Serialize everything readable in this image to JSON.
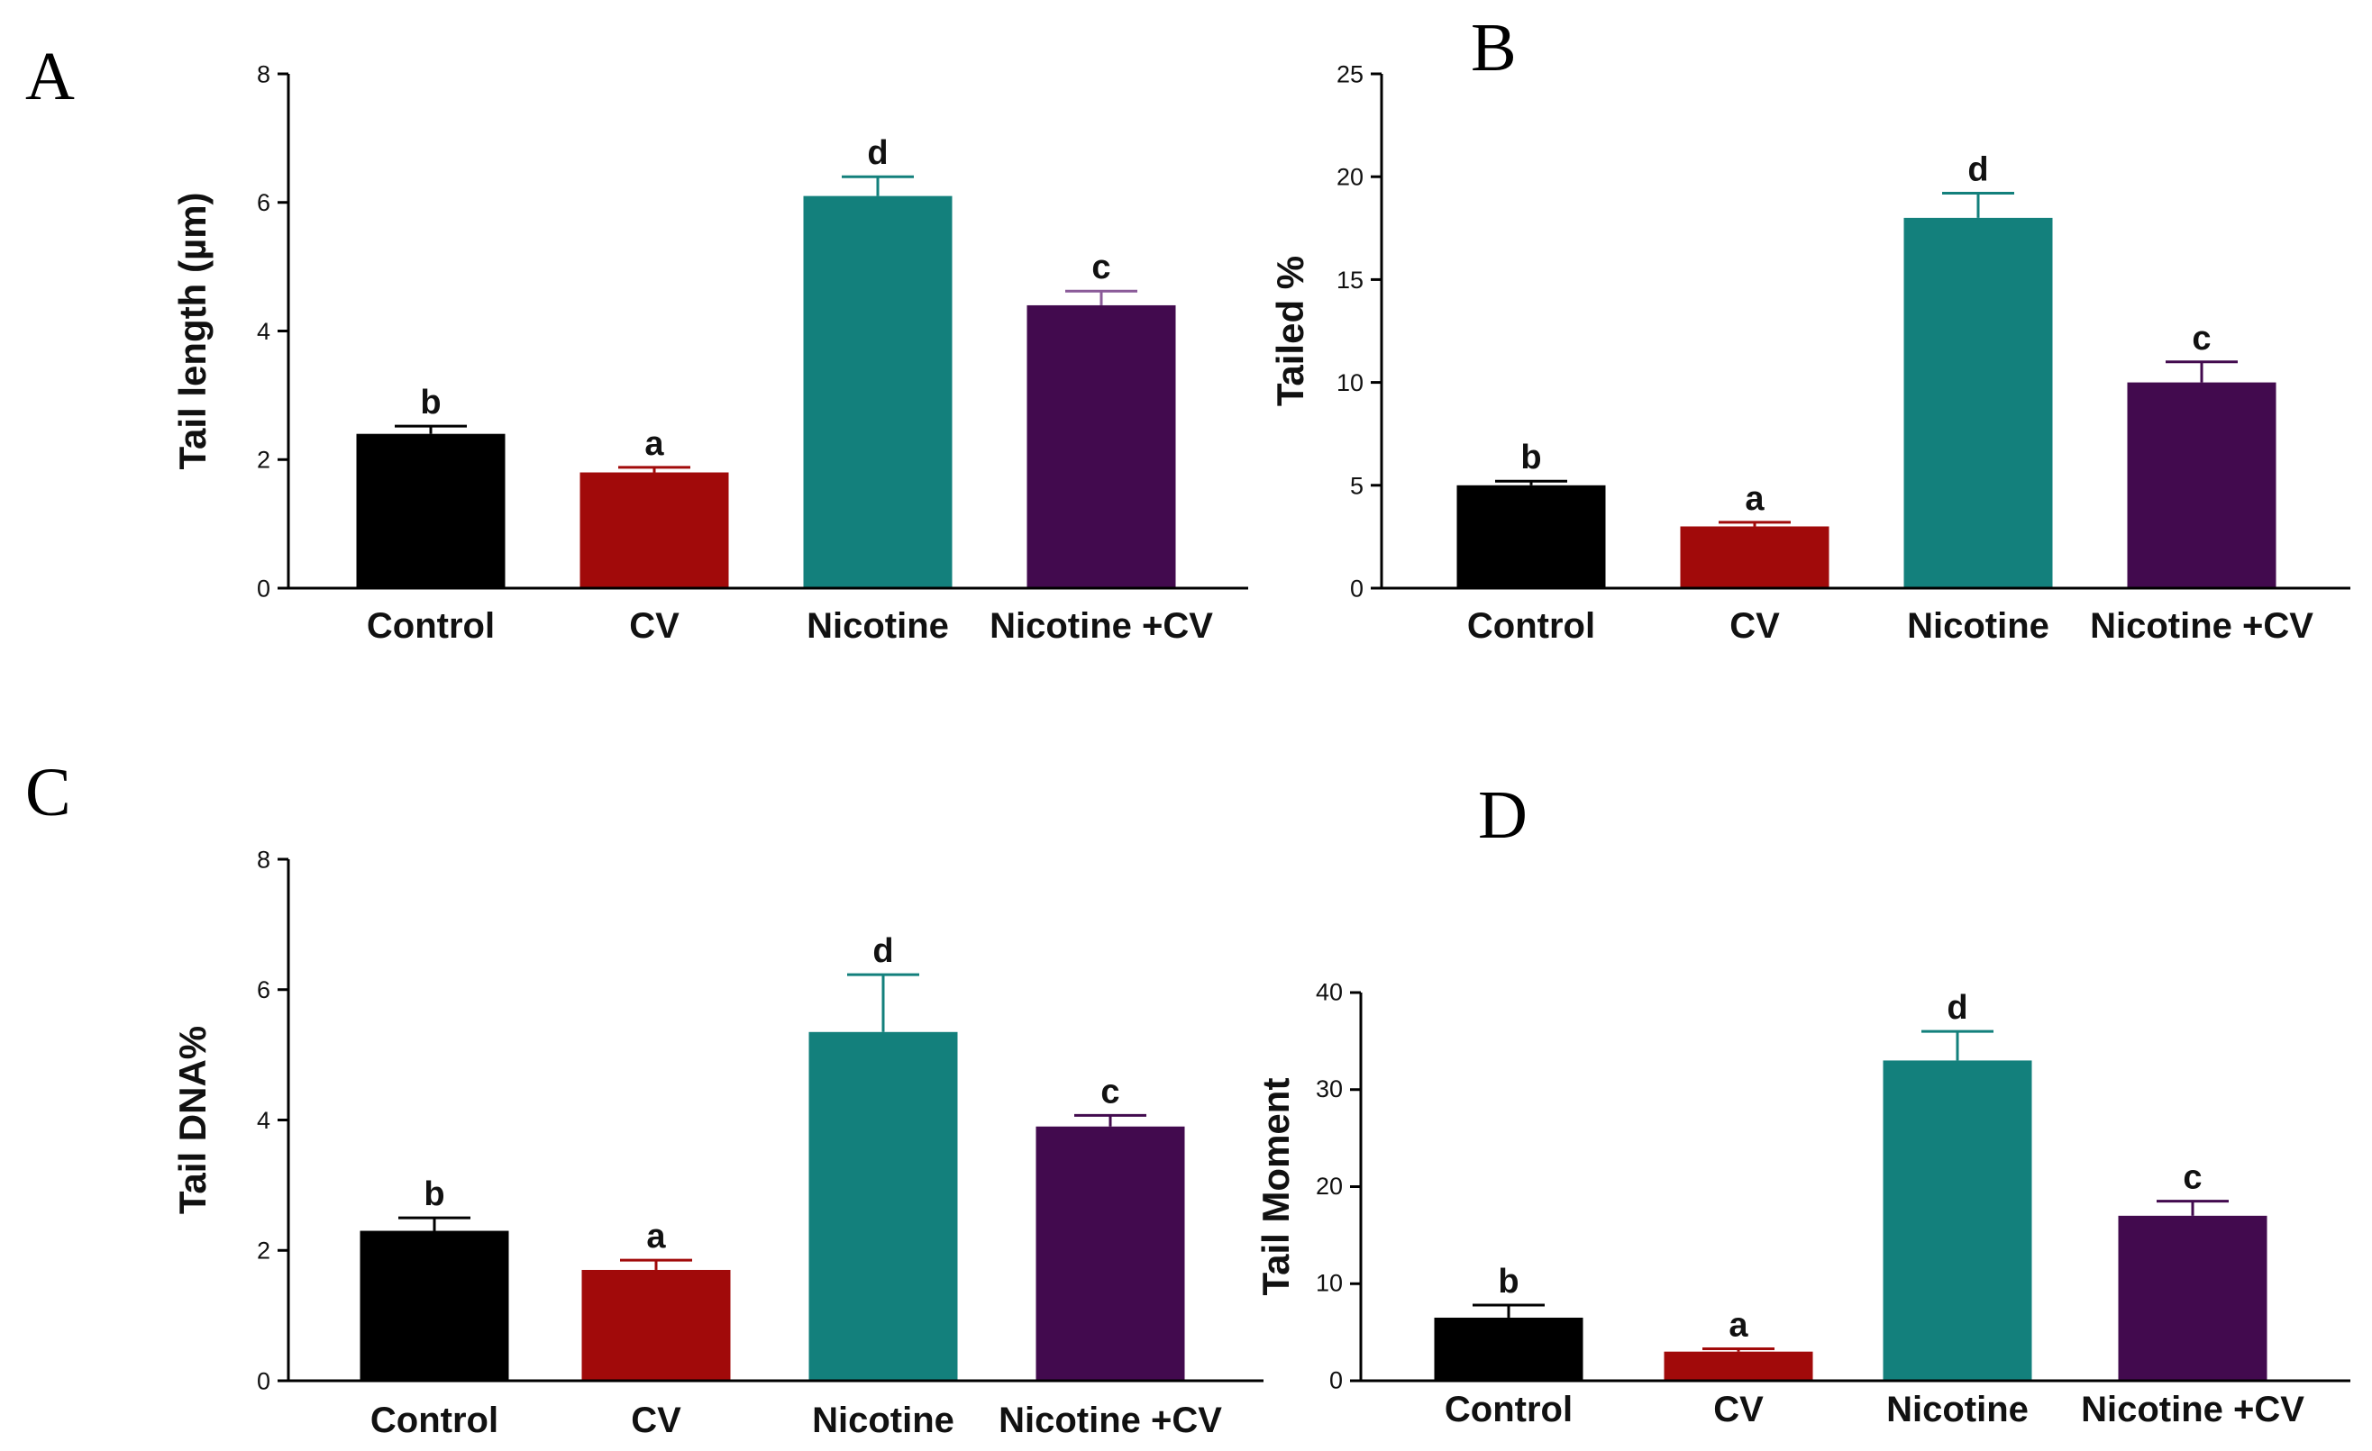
{
  "chart_data": [
    {
      "type": "bar",
      "panel": "A",
      "categories": [
        "Control",
        "CV",
        "Nicotine",
        "Nicotine +CV"
      ],
      "values": [
        2.4,
        1.8,
        6.1,
        4.4
      ],
      "errors": [
        0.12,
        0.08,
        0.3,
        0.22
      ],
      "significance": [
        "b",
        "a",
        "d",
        "c"
      ],
      "ylabel": "Tail length (µm)",
      "ylim": [
        0,
        8
      ],
      "yticks": [
        0,
        2,
        4,
        6,
        8
      ],
      "colors": [
        "#000000",
        "#a10a0a",
        "#13807c",
        "#420a4e"
      ],
      "error_colors": [
        "#000000",
        "#a10a0a",
        "#13807c",
        "#8a5a98"
      ],
      "grid": false
    },
    {
      "type": "bar",
      "panel": "B",
      "categories": [
        "Control",
        "CV",
        "Nicotine",
        "Nicotine +CV"
      ],
      "values": [
        5.0,
        3.0,
        18.0,
        10.0
      ],
      "errors": [
        0.2,
        0.2,
        1.2,
        1.0
      ],
      "significance": [
        "b",
        "a",
        "d",
        "c"
      ],
      "ylabel": "Tailed %",
      "ylim": [
        0,
        25
      ],
      "yticks": [
        0,
        5,
        10,
        15,
        20,
        25
      ],
      "colors": [
        "#000000",
        "#a10a0a",
        "#13807c",
        "#420a4e"
      ],
      "error_colors": [
        "#000000",
        "#a10a0a",
        "#13807c",
        "#420a4e"
      ],
      "grid": false
    },
    {
      "type": "bar",
      "panel": "C",
      "categories": [
        "Control",
        "CV",
        "Nicotine",
        "Nicotine +CV"
      ],
      "values": [
        2.3,
        1.7,
        5.35,
        3.9
      ],
      "errors": [
        0.2,
        0.15,
        0.88,
        0.17
      ],
      "significance": [
        "b",
        "a",
        "d",
        "c"
      ],
      "ylabel": "Tail DNA%",
      "ylim": [
        0,
        8
      ],
      "yticks": [
        0,
        2,
        4,
        6,
        8
      ],
      "colors": [
        "#000000",
        "#a10a0a",
        "#13807c",
        "#420a4e"
      ],
      "error_colors": [
        "#000000",
        "#a10a0a",
        "#13807c",
        "#420a4e"
      ],
      "grid": false
    },
    {
      "type": "bar",
      "panel": "D",
      "categories": [
        "Control",
        "CV",
        "Nicotine",
        "Nicotine +CV"
      ],
      "values": [
        6.5,
        3.0,
        33.0,
        17.0
      ],
      "errors": [
        1.3,
        0.3,
        3.0,
        1.5
      ],
      "significance": [
        "b",
        "a",
        "d",
        "c"
      ],
      "ylabel": "Tail Moment",
      "ylim": [
        0,
        40
      ],
      "yticks": [
        0,
        10,
        20,
        30,
        40
      ],
      "colors": [
        "#000000",
        "#a10a0a",
        "#13807c",
        "#420a4e"
      ],
      "error_colors": [
        "#000000",
        "#a10a0a",
        "#13807c",
        "#420a4e"
      ],
      "grid": false
    }
  ]
}
